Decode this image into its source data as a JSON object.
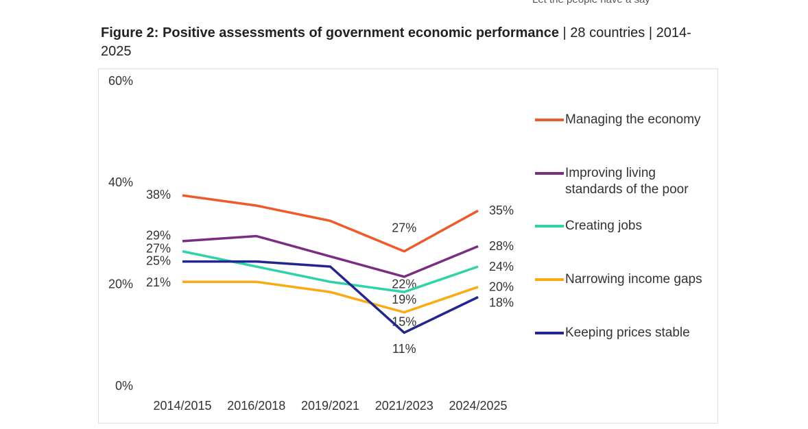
{
  "header": "Let the people have a say",
  "chart_data": {
    "type": "line",
    "title": "Figure 2: Positive assessments of government economic performance",
    "subtitle": " | 28 countries | 2014-2025",
    "categories": [
      "2014/2015",
      "2016/2018",
      "2019/2021",
      "2021/2023",
      "2024/2025"
    ],
    "ylim": [
      0,
      60
    ],
    "yticks": [
      {
        "value": 0,
        "label": "0%"
      },
      {
        "value": 20,
        "label": "20%"
      },
      {
        "value": 40,
        "label": "40%"
      },
      {
        "value": 60,
        "label": "60%"
      }
    ],
    "grid": false,
    "legend": "right",
    "series": [
      {
        "name": "Managing the economy",
        "color": "#ee5a2a",
        "values": [
          38,
          36,
          33,
          27,
          35
        ],
        "value_labels": [
          "38%",
          null,
          null,
          "27%",
          "35%"
        ]
      },
      {
        "name": "Improving living standards of the poor",
        "color": "#7b2d82",
        "values": [
          29,
          30,
          26,
          22,
          28
        ],
        "value_labels": [
          "29%",
          null,
          null,
          "22%",
          "28%"
        ]
      },
      {
        "name": "Creating jobs",
        "color": "#2fd3a8",
        "values": [
          27,
          24,
          21,
          19,
          24
        ],
        "value_labels": [
          "27%",
          null,
          null,
          "19%",
          "24%"
        ]
      },
      {
        "name": "Narrowing income gaps",
        "color": "#fbaa14",
        "values": [
          21,
          21,
          19,
          15,
          20
        ],
        "value_labels": [
          "21%",
          null,
          null,
          "15%",
          "20%"
        ]
      },
      {
        "name": "Keeping prices stable",
        "color": "#25258f",
        "values": [
          25,
          25,
          24,
          11,
          18
        ],
        "value_labels": [
          "25%",
          null,
          null,
          "11%",
          "18%"
        ]
      }
    ]
  }
}
